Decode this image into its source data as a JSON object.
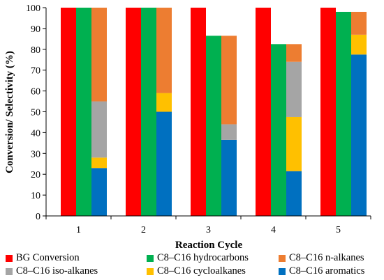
{
  "chart_data": {
    "type": "bar",
    "stacked_groups": true,
    "categories": [
      "1",
      "2",
      "3",
      "4",
      "5"
    ],
    "xlabel": "Reaction Cycle",
    "ylabel": "Conversion/ Selectivity (%)",
    "ylim": [
      0,
      100
    ],
    "yticks": [
      "0",
      "10",
      "20",
      "30",
      "40",
      "50",
      "60",
      "70",
      "80",
      "90",
      "100"
    ],
    "grid": false,
    "legend_position": "bottom",
    "series": [
      {
        "name": "BG Conversion",
        "color": "#ff0000",
        "stack": "a",
        "values": [
          100,
          100,
          100,
          100,
          100
        ]
      },
      {
        "name": "C8–C16 hydrocarbons",
        "color": "#00b050",
        "stack": "b",
        "values": [
          100,
          100,
          86.5,
          82.5,
          98
        ]
      },
      {
        "name": "C8–C16 aromatics",
        "color": "#0070c0",
        "stack": "c",
        "values": [
          23,
          50,
          36.5,
          21.5,
          77.5
        ]
      },
      {
        "name": "C8–C16 cycloalkanes",
        "color": "#ffc000",
        "stack": "c",
        "values": [
          5,
          9,
          0,
          26,
          9.5
        ]
      },
      {
        "name": "C8–C16 iso-alkanes",
        "color": "#a5a5a5",
        "stack": "c",
        "values": [
          27,
          0,
          7.5,
          26.5,
          0
        ]
      },
      {
        "name": "C8–C16 n-alkanes",
        "color": "#ed7d31",
        "stack": "c",
        "values": [
          45,
          41,
          42.5,
          8.5,
          11
        ]
      }
    ]
  },
  "legend": [
    {
      "label": "BG Conversion",
      "color": "#ff0000"
    },
    {
      "label": "C8–C16 hydrocarbons",
      "color": "#00b050"
    },
    {
      "label": "C8–C16 n-alkanes",
      "color": "#ed7d31"
    },
    {
      "label": "C8–C16 iso-alkanes",
      "color": "#a5a5a5"
    },
    {
      "label": "C8–C16 cycloalkanes",
      "color": "#ffc000"
    },
    {
      "label": "C8–C16 aromatics",
      "color": "#0070c0"
    }
  ]
}
